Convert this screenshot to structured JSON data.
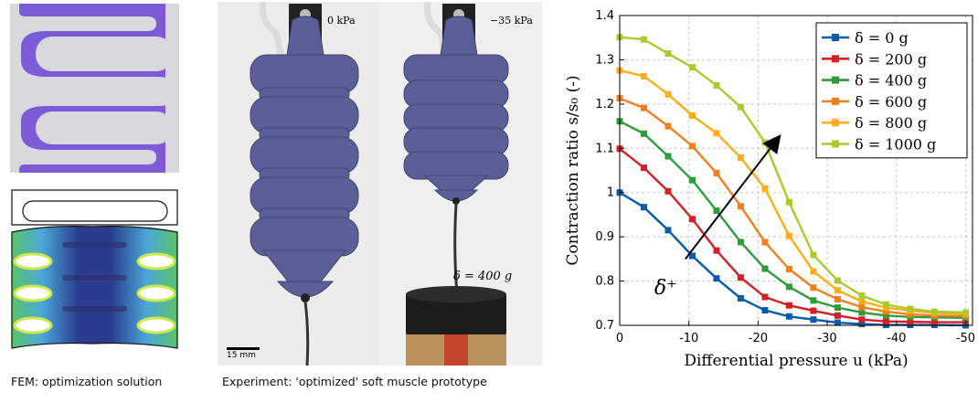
{
  "captions": {
    "fem": "FEM: optimization solution",
    "experiment": "Experiment: 'optimized' soft muscle prototype"
  },
  "photo": {
    "left_pressure": "0 kPa",
    "right_pressure": "−35 kPa",
    "load_label": "δ = 400 g",
    "scale_bar": "15 mm"
  },
  "colors": {
    "fem_fill": "#7b5cd6",
    "fem_bg": "#d9d9dd",
    "muscle": "#5c5f97",
    "muscle_dark": "#41446f"
  },
  "chart_data": {
    "type": "line",
    "xlabel": "Differential pressure u (kPa)",
    "ylabel": "Contraction ratio s/s₀ (-)",
    "xlim": [
      0,
      -51
    ],
    "ylim": [
      0.7,
      1.4
    ],
    "xticks": [
      0,
      -10,
      -20,
      -30,
      -40,
      -50
    ],
    "xtick_labels": [
      "0",
      "-10",
      "-20",
      "-30",
      "-40",
      "-50"
    ],
    "yticks": [
      0.7,
      0.8,
      0.9,
      1.0,
      1.1,
      1.2,
      1.3,
      1.4
    ],
    "ytick_labels": [
      "0.7",
      "0.8",
      "0.9",
      "1",
      "1.1",
      "1.2",
      "1.3",
      "1.4"
    ],
    "grid": true,
    "legend_position": "top-right",
    "annotation": "δ⁺",
    "x": [
      0,
      -3.5,
      -7,
      -10.5,
      -14,
      -17.5,
      -21,
      -24.5,
      -28,
      -31.5,
      -35,
      -38.5,
      -42,
      -45.5,
      -50
    ],
    "series": [
      {
        "name": "δ = 0 g",
        "color": "#0a5bab",
        "values": [
          1.0,
          0.967,
          0.915,
          0.857,
          0.806,
          0.761,
          0.734,
          0.72,
          0.713,
          0.706,
          0.703,
          0.701,
          0.701,
          0.701,
          0.7
        ]
      },
      {
        "name": "δ = 200 g",
        "color": "#d31f26",
        "values": [
          1.099,
          1.056,
          1.003,
          0.94,
          0.869,
          0.808,
          0.764,
          0.745,
          0.733,
          0.722,
          0.713,
          0.709,
          0.708,
          0.707,
          0.707
        ]
      },
      {
        "name": "δ = 400 g",
        "color": "#2f9c3b",
        "values": [
          1.161,
          1.133,
          1.082,
          1.028,
          0.959,
          0.888,
          0.828,
          0.787,
          0.756,
          0.74,
          0.729,
          0.722,
          0.719,
          0.718,
          0.717
        ]
      },
      {
        "name": "δ = 600 g",
        "color": "#f07f1e",
        "values": [
          1.213,
          1.191,
          1.15,
          1.105,
          1.044,
          0.969,
          0.888,
          0.827,
          0.785,
          0.759,
          0.741,
          0.731,
          0.725,
          0.722,
          0.721
        ]
      },
      {
        "name": "δ = 800 g",
        "color": "#fcad17",
        "values": [
          1.276,
          1.263,
          1.222,
          1.174,
          1.134,
          1.079,
          1.009,
          0.902,
          0.822,
          0.779,
          0.754,
          0.74,
          0.733,
          0.728,
          0.726
        ]
      },
      {
        "name": "δ = 1000 g",
        "color": "#a9cc2c",
        "values": [
          1.351,
          1.346,
          1.314,
          1.283,
          1.242,
          1.193,
          1.113,
          0.978,
          0.859,
          0.801,
          0.767,
          0.747,
          0.737,
          0.731,
          0.729
        ]
      }
    ]
  }
}
